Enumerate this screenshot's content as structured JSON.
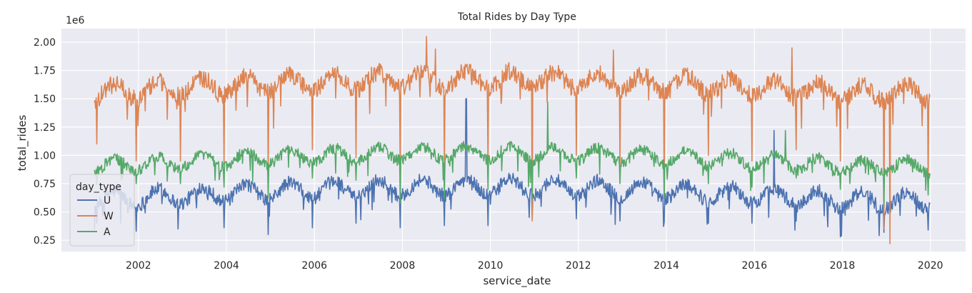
{
  "chart_data": {
    "type": "line",
    "title": "Total Rides by Day Type",
    "xlabel": "service_date",
    "ylabel": "total_rides",
    "y_multiplier": "1e6",
    "xlim": [
      2000.25,
      2020.8
    ],
    "ylim": [
      0.15,
      2.12
    ],
    "x_ticks": [
      2002,
      2004,
      2006,
      2008,
      2010,
      2012,
      2014,
      2016,
      2018,
      2020
    ],
    "x_tick_labels": [
      "2002",
      "2004",
      "2006",
      "2008",
      "2010",
      "2012",
      "2014",
      "2016",
      "2018",
      "2020"
    ],
    "y_ticks": [
      0.25,
      0.5,
      0.75,
      1.0,
      1.25,
      1.5,
      1.75,
      2.0
    ],
    "y_tick_labels": [
      "0.25",
      "0.50",
      "0.75",
      "1.00",
      "1.25",
      "1.50",
      "1.75",
      "2.00"
    ],
    "grid": true,
    "legend": {
      "title": "day_type",
      "position": "lower-left"
    },
    "x_range": [
      2001.0,
      2019.99
    ],
    "series": [
      {
        "name": "U",
        "color": "#4c72b0",
        "base": 0.6,
        "trend": 0.12,
        "seasonal_amp": 0.12,
        "noise_amp": 0.06,
        "dips": [
          [
            2001.6,
            0.4
          ],
          [
            2001.95,
            0.33
          ],
          [
            2002.9,
            0.35
          ],
          [
            2003.95,
            0.36
          ],
          [
            2004.95,
            0.3
          ],
          [
            2005.95,
            0.36
          ],
          [
            2006.95,
            0.4
          ],
          [
            2007.95,
            0.36
          ],
          [
            2008.95,
            0.38
          ],
          [
            2009.95,
            0.38
          ],
          [
            2010.95,
            0.44
          ],
          [
            2011.95,
            0.44
          ],
          [
            2012.95,
            0.42
          ],
          [
            2013.95,
            0.41
          ],
          [
            2014.95,
            0.4
          ],
          [
            2015.95,
            0.4
          ],
          [
            2016.95,
            0.42
          ],
          [
            2017.95,
            0.28
          ],
          [
            2018.95,
            0.32
          ],
          [
            2019.95,
            0.34
          ]
        ],
        "spikes": [
          [
            2009.45,
            1.5
          ],
          [
            2016.45,
            1.22
          ]
        ]
      },
      {
        "name": "W",
        "color": "#dd8452",
        "base": 1.55,
        "trend": 0.12,
        "seasonal_amp": 0.12,
        "noise_amp": 0.08,
        "dips": [
          [
            2001.05,
            1.1
          ],
          [
            2001.95,
            0.95
          ],
          [
            2002.95,
            0.95
          ],
          [
            2003.95,
            0.92
          ],
          [
            2004.95,
            0.8
          ],
          [
            2005.95,
            1.05
          ],
          [
            2006.95,
            0.98
          ],
          [
            2007.95,
            0.8
          ],
          [
            2008.95,
            0.85
          ],
          [
            2009.95,
            0.9
          ],
          [
            2010.95,
            0.42
          ],
          [
            2011.95,
            1.0
          ],
          [
            2012.95,
            0.9
          ],
          [
            2013.95,
            0.65
          ],
          [
            2014.95,
            1.0
          ],
          [
            2015.95,
            0.95
          ],
          [
            2016.95,
            1.05
          ],
          [
            2017.95,
            0.95
          ],
          [
            2018.95,
            0.35
          ],
          [
            2019.08,
            0.22
          ],
          [
            2019.95,
            0.75
          ]
        ],
        "spikes": [
          [
            2008.55,
            2.05
          ],
          [
            2016.85,
            1.95
          ],
          [
            2012.8,
            1.93
          ],
          [
            2008.75,
            1.94
          ]
        ]
      },
      {
        "name": "A",
        "color": "#55a868",
        "base": 0.9,
        "trend": 0.12,
        "seasonal_amp": 0.1,
        "noise_amp": 0.05,
        "dips": [
          [
            2001.95,
            0.75
          ],
          [
            2002.95,
            0.75
          ],
          [
            2003.95,
            0.72
          ],
          [
            2004.95,
            0.62
          ],
          [
            2005.95,
            0.8
          ],
          [
            2006.95,
            0.78
          ],
          [
            2007.95,
            0.58
          ],
          [
            2008.95,
            0.62
          ],
          [
            2009.95,
            0.7
          ],
          [
            2010.95,
            0.62
          ],
          [
            2011.95,
            0.8
          ],
          [
            2012.95,
            0.75
          ],
          [
            2013.95,
            0.62
          ],
          [
            2014.95,
            0.75
          ],
          [
            2015.95,
            0.72
          ],
          [
            2016.95,
            0.8
          ],
          [
            2017.95,
            0.7
          ],
          [
            2018.95,
            0.56
          ],
          [
            2019.95,
            0.65
          ]
        ],
        "spikes": [
          [
            2011.3,
            1.47
          ],
          [
            2016.7,
            1.22
          ]
        ]
      }
    ]
  }
}
